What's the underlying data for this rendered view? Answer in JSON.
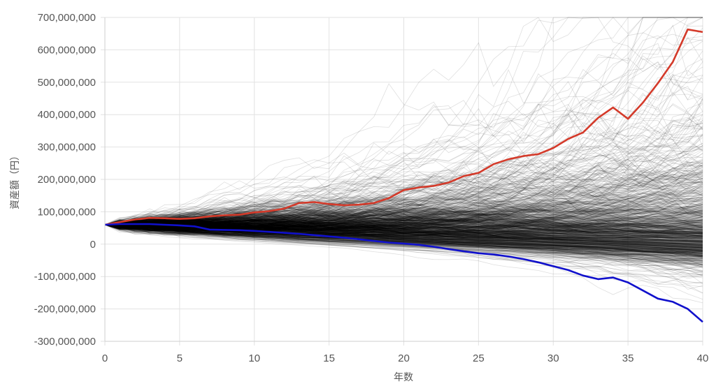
{
  "chart_data": {
    "type": "line",
    "xlabel": "年数",
    "ylabel": "資産額（円）",
    "xlim": [
      0,
      40
    ],
    "ylim": [
      -300000000,
      700000000
    ],
    "x_ticks": [
      "0",
      "5",
      "10",
      "15",
      "20",
      "25",
      "30",
      "35",
      "40"
    ],
    "y_ticks": [
      "700,000,000",
      "600,000,000",
      "500,000,000",
      "400,000,000",
      "300,000,000",
      "200,000,000",
      "100,000,000",
      "0",
      "-100,000,000",
      "-200,000,000",
      "-300,000,000"
    ],
    "grid": true,
    "legend": "none",
    "simulation_paths": {
      "count": 1000,
      "color": "#000000",
      "start_value": 60000000,
      "description_x_range": [
        0,
        40
      ]
    },
    "series": [
      {
        "color": "#d43a2a",
        "x": [
          0,
          1,
          2,
          3,
          4,
          5,
          6,
          7,
          8,
          9,
          10,
          11,
          12,
          13,
          14,
          15,
          16,
          17,
          18,
          19,
          20,
          21,
          22,
          23,
          24,
          25,
          26,
          27,
          28,
          29,
          30,
          31,
          32,
          33,
          34,
          35,
          36,
          37,
          38,
          39,
          40
        ],
        "values": [
          60000000,
          68000000,
          76000000,
          81000000,
          80000000,
          78000000,
          80000000,
          86000000,
          89000000,
          91000000,
          98000000,
          102000000,
          110000000,
          127000000,
          130000000,
          124000000,
          120000000,
          122000000,
          127000000,
          142000000,
          167000000,
          175000000,
          180000000,
          190000000,
          210000000,
          220000000,
          247000000,
          262000000,
          272000000,
          278000000,
          297000000,
          325000000,
          345000000,
          390000000,
          422000000,
          387000000,
          437000000,
          497000000,
          563000000,
          663000000,
          655000000
        ]
      },
      {
        "color": "#1010cc",
        "x": [
          0,
          1,
          2,
          3,
          4,
          5,
          6,
          7,
          8,
          9,
          10,
          11,
          12,
          13,
          14,
          15,
          16,
          17,
          18,
          19,
          20,
          21,
          22,
          23,
          24,
          25,
          26,
          27,
          28,
          29,
          30,
          31,
          32,
          33,
          34,
          35,
          36,
          37,
          38,
          39,
          40
        ],
        "values": [
          60000000,
          62000000,
          62000000,
          62000000,
          60000000,
          58000000,
          55000000,
          45000000,
          44000000,
          43000000,
          41000000,
          38000000,
          35000000,
          32000000,
          28000000,
          24000000,
          20000000,
          15000000,
          10000000,
          5000000,
          2000000,
          -2000000,
          -8000000,
          -15000000,
          -22000000,
          -28000000,
          -32000000,
          -38000000,
          -46000000,
          -56000000,
          -68000000,
          -80000000,
          -97000000,
          -108000000,
          -103000000,
          -118000000,
          -143000000,
          -168000000,
          -178000000,
          -200000000,
          -240000000
        ]
      }
    ]
  }
}
